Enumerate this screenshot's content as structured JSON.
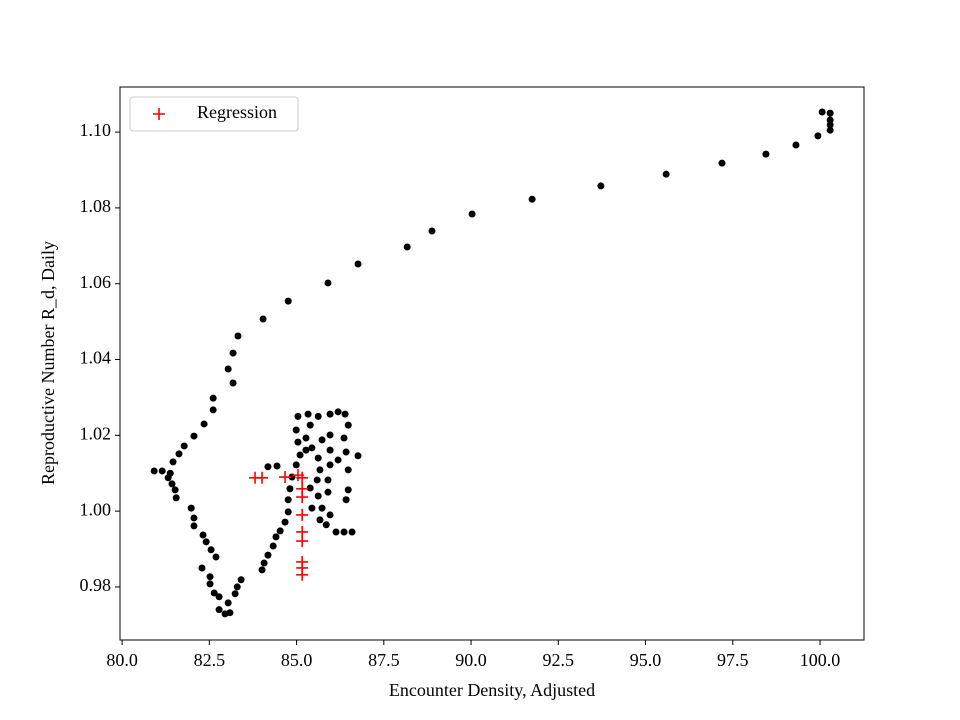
{
  "chart_data": {
    "type": "scatter",
    "x_label": "Encounter Density, Adjusted",
    "y_label": "Reproductive Number R_d, Daily",
    "xlim": [
      79.94,
      101.26
    ],
    "ylim": [
      0.966,
      1.1119
    ],
    "xticks": [
      {
        "value": 80,
        "label": "80.0"
      },
      {
        "value": 82.5,
        "label": "82.5"
      },
      {
        "value": 85,
        "label": "85.0"
      },
      {
        "value": 87.5,
        "label": "87.5"
      },
      {
        "value": 90,
        "label": "90.0"
      },
      {
        "value": 92.5,
        "label": "92.5"
      },
      {
        "value": 95,
        "label": "95.0"
      },
      {
        "value": 97.5,
        "label": "97.5"
      },
      {
        "value": 100,
        "label": "100.0"
      }
    ],
    "yticks": [
      {
        "value": 0.98,
        "label": "0.98"
      },
      {
        "value": 1.0,
        "label": "1.00"
      },
      {
        "value": 1.02,
        "label": "1.02"
      },
      {
        "value": 1.04,
        "label": "1.04"
      },
      {
        "value": 1.06,
        "label": "1.06"
      },
      {
        "value": 1.08,
        "label": "1.08"
      },
      {
        "value": 1.1,
        "label": "1.10"
      }
    ],
    "legend": "upper left",
    "series": [
      {
        "color": "#000000",
        "marker": "o",
        "x": [
          99.94,
          99.31,
          98.45,
          97.19,
          95.59,
          93.72,
          91.75,
          90.03,
          88.88,
          88.17,
          86.76,
          85.9,
          84.76,
          84.04,
          83.32,
          83.18,
          83.04,
          83.18,
          82.61,
          82.61,
          82.35,
          82.06,
          81.78,
          81.63,
          81.46,
          80.92,
          81.15,
          81.38,
          81.32,
          81.43,
          81.52,
          81.55,
          100.06,
          100.29,
          100.29,
          100.29,
          100.29,
          81.98,
          82.06,
          82.06,
          82.32,
          82.41,
          82.55,
          82.69,
          82.29,
          82.52,
          82.52,
          82.64,
          82.78,
          82.78,
          82.95,
          83.09,
          83.04,
          83.24,
          83.3,
          83.41,
          84.01,
          84.07,
          84.18,
          84.33,
          84.41,
          84.53,
          84.67,
          84.76,
          84.76,
          84.81,
          84.87,
          84.18,
          84.44,
          84.99,
          85.1,
          85.04,
          84.99,
          85.04,
          85.33,
          85.39,
          85.27,
          85.44,
          85.62,
          85.67,
          85.59,
          85.39,
          85.44,
          85.67,
          85.85,
          86.13,
          86.36,
          86.59,
          85.96,
          85.73,
          85.62,
          85.9,
          85.9,
          85.96,
          85.96,
          85.96,
          85.96,
          86.19,
          86.39,
          86.48,
          86.36,
          86.42,
          86.48,
          86.48,
          86.42,
          86.76,
          85.62,
          85.73,
          86.19,
          85.27
        ],
        "values": [
          1.099,
          1.0966,
          1.0942,
          1.0918,
          1.0889,
          1.0858,
          1.0823,
          1.0784,
          1.0739,
          1.0697,
          1.0652,
          1.0602,
          1.0554,
          1.0507,
          1.0462,
          1.0417,
          1.0375,
          1.0338,
          1.0298,
          1.0267,
          1.023,
          1.0198,
          1.0172,
          1.0151,
          1.013,
          1.0106,
          1.0106,
          1.01,
          1.0088,
          1.0072,
          1.0056,
          1.0035,
          1.1053,
          1.105,
          1.1032,
          1.1019,
          1.1005,
          1.0008,
          0.9982,
          0.9961,
          0.9937,
          0.9919,
          0.9898,
          0.9879,
          0.985,
          0.9827,
          0.9808,
          0.9784,
          0.9774,
          0.974,
          0.9729,
          0.9732,
          0.9758,
          0.9782,
          0.98,
          0.9819,
          0.9845,
          0.9863,
          0.9884,
          0.9908,
          0.9932,
          0.9948,
          0.9971,
          0.9998,
          1.003,
          1.0059,
          1.009,
          1.0117,
          1.0119,
          1.0122,
          1.0148,
          1.0182,
          1.0214,
          1.025,
          1.0256,
          1.0227,
          1.0193,
          1.0167,
          1.014,
          1.0109,
          1.0082,
          1.0061,
          1.0008,
          0.9977,
          0.9964,
          0.9945,
          0.9945,
          0.9945,
          0.999,
          1.0008,
          1.004,
          1.005,
          1.0082,
          1.0122,
          1.0161,
          1.0201,
          1.0256,
          1.0262,
          1.0256,
          1.0227,
          1.0193,
          1.0156,
          1.0109,
          1.0056,
          1.003,
          1.0146,
          1.025,
          1.0188,
          1.0135,
          1.0161
        ]
      },
      {
        "name": "Regression",
        "color": "#ff0000",
        "marker": "+",
        "x": [
          83.81,
          84.01,
          84.67,
          85.04,
          85.16,
          85.16,
          85.16,
          85.16,
          85.16,
          85.16,
          85.16,
          85.16,
          85.16
        ],
        "values": [
          1.0088,
          1.0088,
          1.009,
          1.0095,
          1.0088,
          1.0059,
          1.0037,
          0.999,
          0.9945,
          0.9921,
          0.9866,
          0.985,
          0.9832
        ]
      }
    ]
  }
}
